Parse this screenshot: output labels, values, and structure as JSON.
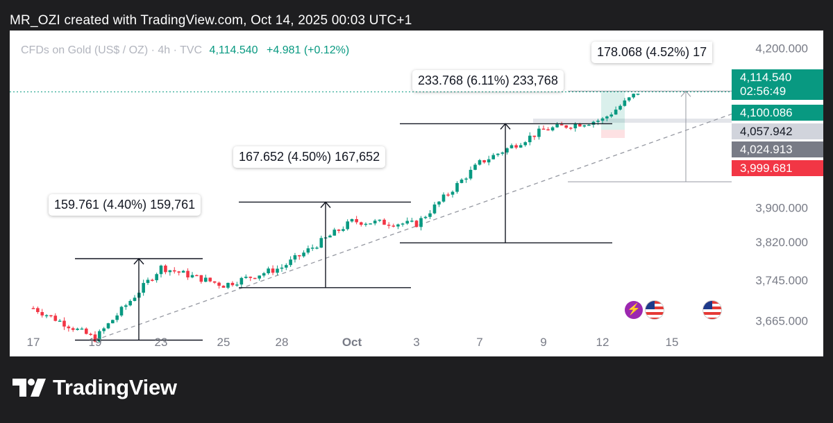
{
  "header": {
    "text": "MR_OZI created with TradingView.com, Oct 14, 2025 00:03 UTC+1"
  },
  "symbol_info": {
    "name": "CFDs on Gold (US$ / OZ) · 4h · TVC",
    "price": "4,114.540",
    "change": "+4.981 (+0.12%)"
  },
  "brand": {
    "name": "TradingView"
  },
  "colors": {
    "up": "#089981",
    "down": "#f23645",
    "text": "#131722",
    "axis_text": "#787b86",
    "line": "#131722",
    "dashed": "#9598a1",
    "current_line": "#089981"
  },
  "price_labels": {
    "current": "4,114.540",
    "countdown": "02:56:49",
    "green_level": "4,100.086",
    "gray_light": "4,057.942",
    "gray_dark": "4,024.913",
    "red_level": "3,999.681"
  },
  "chart_data": {
    "type": "candlestick",
    "symbol": "CFDs on Gold (US$ / OZ)",
    "timeframe": "4h",
    "y_ticks": [
      "4,200.000",
      "3,820.000",
      "3,745.000",
      "3,665.000"
    ],
    "x_ticks": [
      "17",
      "19",
      "23",
      "25",
      "28",
      "Oct",
      "3",
      "7",
      "9",
      "12",
      "15"
    ],
    "ylim": [
      3595,
      4235
    ],
    "current_price": 4114.54,
    "anchors": [
      {
        "date": "17",
        "price": 3690
      },
      {
        "date": "19",
        "price": 3630
      },
      {
        "date": "23",
        "price": 3770
      },
      {
        "date": "25",
        "price": 3735
      },
      {
        "date": "28",
        "price": 3770
      },
      {
        "date": "Oct",
        "price": 3860
      },
      {
        "date": "3",
        "price": 3855
      },
      {
        "date": "7",
        "price": 3975
      },
      {
        "date": "9",
        "price": 4040
      },
      {
        "date": "12",
        "price": 4060
      },
      {
        "date": "12",
        "price": 4114
      }
    ],
    "measurements": [
      {
        "label": "159.761 (4.40%) 159,761",
        "from_date": "19",
        "to_date": "23",
        "low": 3627,
        "high": 3787
      },
      {
        "label": "167.652 (4.50%) 167,652",
        "from_date": "25",
        "to_date": "3",
        "low": 3730,
        "high": 3898
      },
      {
        "label": "233.768 (6.11%) 233,768",
        "from_date": "3",
        "to_date": "9",
        "low": 3818,
        "high": 4052
      },
      {
        "label": "178.068 (4.52%) 17",
        "from_date": "9",
        "to_date": "15",
        "low": 3938,
        "high": 4116
      }
    ],
    "trendline": {
      "from_date": "19",
      "from_price": 3627,
      "to_date": "15",
      "to_price": 4030
    }
  }
}
